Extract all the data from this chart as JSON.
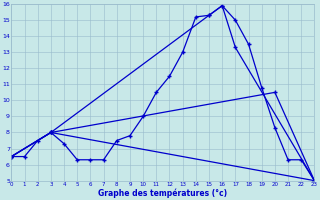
{
  "xlabel": "Graphe des températures (°c)",
  "background_color": "#c8e8e8",
  "line_color": "#0000cc",
  "grid_color": "#99bbcc",
  "xmin": 0,
  "xmax": 23,
  "ymin": 5,
  "ymax": 16,
  "xtick_vals": [
    0,
    1,
    2,
    3,
    4,
    5,
    6,
    7,
    8,
    9,
    10,
    11,
    12,
    13,
    14,
    15,
    16,
    17,
    18,
    19,
    20,
    21,
    22,
    23
  ],
  "ytick_vals": [
    5,
    6,
    7,
    8,
    9,
    10,
    11,
    12,
    13,
    14,
    15,
    16
  ],
  "curve1_x": [
    0,
    1,
    2,
    3,
    4,
    5,
    6,
    7,
    8,
    9,
    10,
    11,
    12,
    13,
    14,
    15,
    16,
    17,
    18,
    19,
    20,
    21,
    22,
    23
  ],
  "curve1_y": [
    6.5,
    6.5,
    7.5,
    8.0,
    7.3,
    6.3,
    6.3,
    6.3,
    7.5,
    7.8,
    9.0,
    10.5,
    11.5,
    13.0,
    15.2,
    15.3,
    15.9,
    15.0,
    13.5,
    10.8,
    8.3,
    6.3,
    6.3,
    5.0
  ],
  "curve2_x": [
    0,
    3,
    23
  ],
  "curve2_y": [
    6.5,
    8.0,
    5.0
  ],
  "curve3_x": [
    0,
    3,
    20,
    23
  ],
  "curve3_y": [
    6.5,
    8.0,
    10.5,
    5.0
  ],
  "curve4_x": [
    0,
    3,
    15,
    16,
    17,
    23
  ],
  "curve4_y": [
    6.5,
    8.0,
    15.3,
    15.9,
    13.3,
    5.0
  ]
}
